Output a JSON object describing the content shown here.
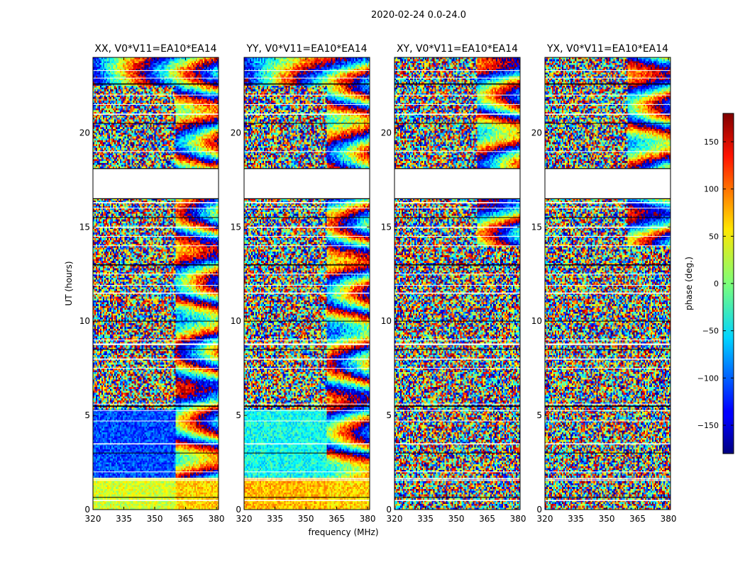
{
  "figure": {
    "suptitle": "2020-02-24 0.0-24.0",
    "xlabel": "frequency (MHz)",
    "ylabel": "UT (hours)",
    "colorbar_label": "phase (deg.)"
  },
  "chart_data": {
    "type": "heatmap",
    "panels": [
      {
        "title": "XX, V0*V11=EA10*EA14",
        "mode": "parallel",
        "seed": 11
      },
      {
        "title": "YY, V0*V11=EA10*EA14",
        "mode": "parallel",
        "seed": 23
      },
      {
        "title": "XY, V0*V11=EA10*EA14",
        "mode": "cross",
        "seed": 37
      },
      {
        "title": "YX, V0*V11=EA10*EA14",
        "mode": "cross",
        "seed": 51
      }
    ],
    "xlim": [
      320,
      381
    ],
    "ylim": [
      0,
      24
    ],
    "xticks": [
      320,
      335,
      350,
      365,
      380
    ],
    "xtick_labels": [
      "320",
      "335",
      "350",
      "365",
      "380"
    ],
    "yticks": [
      0,
      5,
      10,
      15,
      20
    ],
    "ytick_labels": [
      "0",
      "5",
      "10",
      "15",
      "20"
    ],
    "flagged_gap_ut": [
      18.1,
      16.5
    ],
    "colorbar": {
      "range": [
        -180,
        180
      ],
      "ticks": [
        150,
        100,
        50,
        0,
        -50,
        -100,
        -150
      ],
      "tick_labels": [
        "150",
        "100",
        "50",
        "0",
        "−50",
        "−100",
        "−150"
      ],
      "colormap": "jet"
    }
  }
}
